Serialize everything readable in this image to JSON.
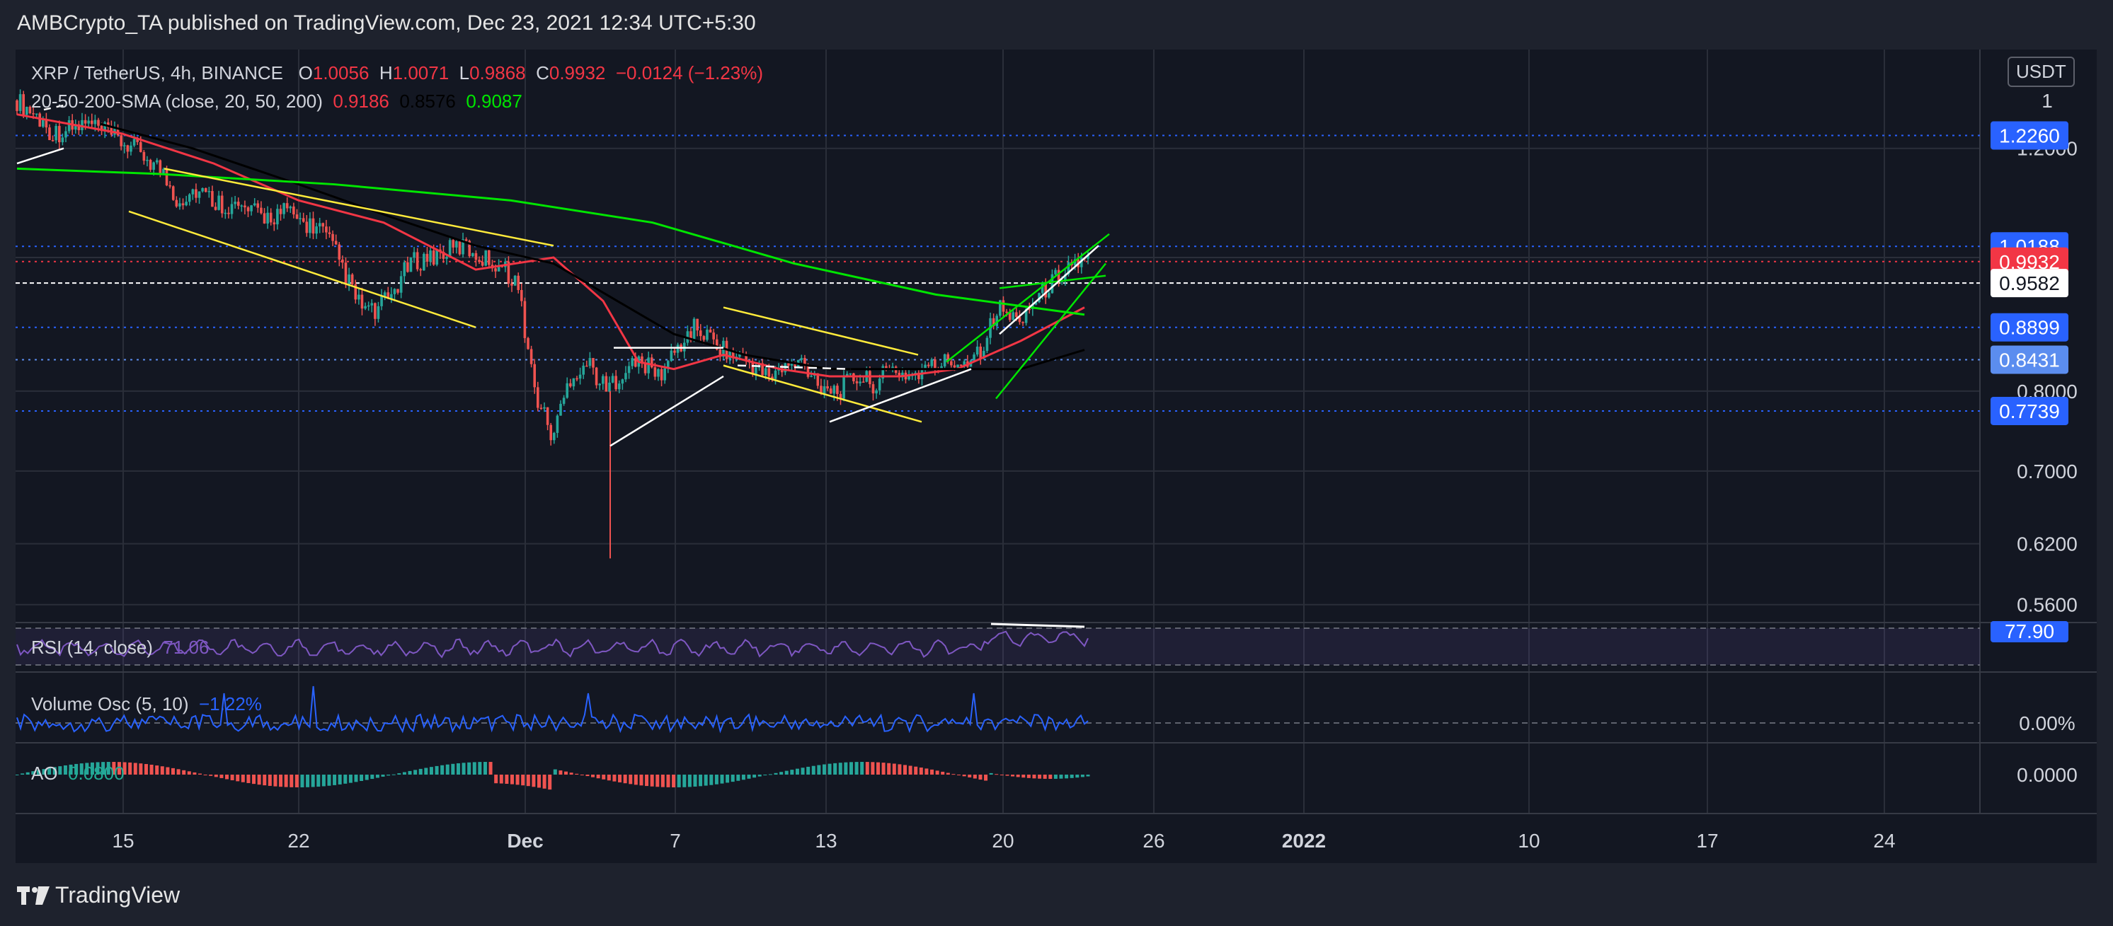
{
  "publisher_line": "AMBCrypto_TA published on TradingView.com, Dec 23, 2021 12:34 UTC+5:30",
  "branding": {
    "logo_text": "TradingView"
  },
  "currency_button": "USDT",
  "legend": {
    "symbol": "XRP / TetherUS, 4h, BINANCE",
    "o_label": "O",
    "o_value": "1.0056",
    "h_label": "H",
    "h_value": "1.0071",
    "l_label": "L",
    "l_value": "0.9868",
    "c_label": "C",
    "c_value": "0.9932",
    "change": "−0.0124 (−1.23%)",
    "sma_label": "20-50-200-SMA (close, 20, 50, 200)",
    "sma20": "0.9186",
    "sma50": "0.8576",
    "sma200": "0.9087",
    "rsi_label": "RSI (14, close)",
    "rsi_value": "71.06",
    "vosc_label": "Volume Osc (5, 10)",
    "vosc_value": "−1.22%",
    "ao_label": "AO",
    "ao_value": "0.0800"
  },
  "colors": {
    "background": "#131722",
    "grid": "#2a2e39",
    "text": "#d1d4dc",
    "up": "#26a69a",
    "down": "#ef5350",
    "sma20": "#f23645",
    "sma50": "#000000",
    "sma200": "#00e600",
    "trend_yellow": "#ffeb3b",
    "trend_green": "#00e600",
    "level_blue": "#2962ff",
    "rsi": "#7e57c2",
    "vosc": "#2962ff"
  },
  "chart_data": {
    "type": "candlestick",
    "title": "XRP / TetherUS, 4h, BINANCE",
    "price_axis_ticks": [
      "1",
      "1.2000",
      "0.8000",
      "0.7000",
      "0.6200",
      "0.5600"
    ],
    "price_axis_log": true,
    "x_tick_labels": [
      "15",
      "22",
      "Dec",
      "7",
      "13",
      "20",
      "26",
      "2022",
      "10",
      "17",
      "24"
    ],
    "price_labels": [
      {
        "value": "1.2260",
        "color": "#2962ff"
      },
      {
        "value": "1.0188",
        "color": "#2962ff"
      },
      {
        "value": "0.9932",
        "color": "#f23645"
      },
      {
        "value": "0.9582",
        "color": "#ffffff"
      },
      {
        "value": "0.8899",
        "color": "#2962ff"
      },
      {
        "value": "0.8431",
        "color": "#5b8def"
      },
      {
        "value": "0.7739",
        "color": "#2962ff"
      }
    ],
    "sample_closes": [
      1.3,
      1.27,
      1.23,
      1.24,
      1.25,
      1.23,
      1.21,
      1.19,
      1.16,
      1.1,
      1.12,
      1.1,
      1.09,
      1.08,
      1.07,
      1.08,
      1.06,
      1.05,
      1.0,
      0.93,
      0.91,
      0.94,
      0.99,
      1.0,
      1.01,
      1.02,
      1.0,
      0.99,
      0.96,
      0.8,
      0.74,
      0.82,
      0.84,
      0.8,
      0.83,
      0.84,
      0.82,
      0.86,
      0.89,
      0.87,
      0.85,
      0.84,
      0.82,
      0.83,
      0.84,
      0.81,
      0.8,
      0.82,
      0.81,
      0.83,
      0.82,
      0.83,
      0.84,
      0.84,
      0.86,
      0.92,
      0.9,
      0.93,
      0.96,
      0.99,
      0.9932
    ],
    "rsi_axis_label": "77.90",
    "vosc_axis_label": "0.00%",
    "ao_axis_label": "0.0000",
    "grid": true
  }
}
